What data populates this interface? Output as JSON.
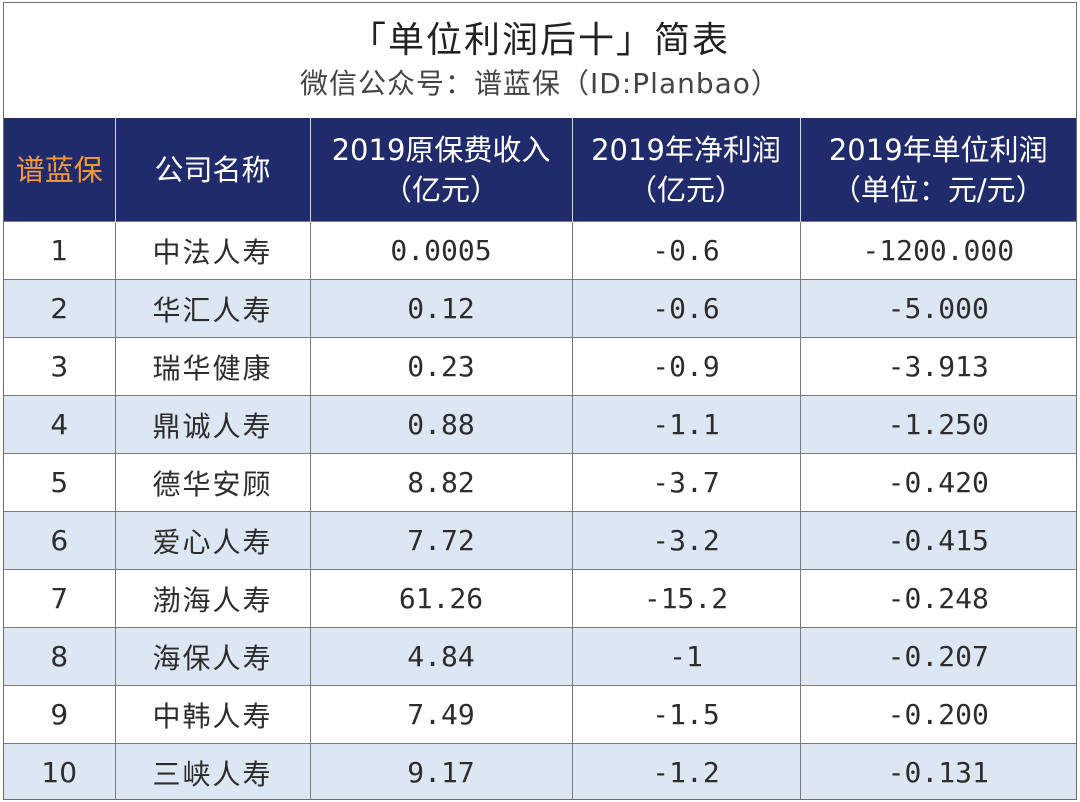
{
  "title": "「单位利润后十」简表",
  "subtitle": "微信公众号：谱蓝保（ID:Planbao）",
  "headers": [
    {
      "line1": "谱蓝保",
      "line2": ""
    },
    {
      "line1": "公司名称",
      "line2": ""
    },
    {
      "line1": "2019原保费收入",
      "line2": "（亿元）"
    },
    {
      "line1": "2019年净利润",
      "line2": "（亿元）"
    },
    {
      "line1": "2019年单位利润",
      "line2": "（单位：元/元）"
    }
  ],
  "rows": [
    {
      "rank": "1",
      "company": "中法人寿",
      "premium": "0.0005",
      "net_profit": "-0.6",
      "unit_profit": "-1200.000"
    },
    {
      "rank": "2",
      "company": "华汇人寿",
      "premium": "0.12",
      "net_profit": "-0.6",
      "unit_profit": "-5.000"
    },
    {
      "rank": "3",
      "company": "瑞华健康",
      "premium": "0.23",
      "net_profit": "-0.9",
      "unit_profit": "-3.913"
    },
    {
      "rank": "4",
      "company": "鼎诚人寿",
      "premium": "0.88",
      "net_profit": "-1.1",
      "unit_profit": "-1.250"
    },
    {
      "rank": "5",
      "company": "德华安顾",
      "premium": "8.82",
      "net_profit": "-3.7",
      "unit_profit": "-0.420"
    },
    {
      "rank": "6",
      "company": "爱心人寿",
      "premium": "7.72",
      "net_profit": "-3.2",
      "unit_profit": "-0.415"
    },
    {
      "rank": "7",
      "company": "渤海人寿",
      "premium": "61.26",
      "net_profit": "-15.2",
      "unit_profit": "-0.248"
    },
    {
      "rank": "8",
      "company": "海保人寿",
      "premium": "4.84",
      "net_profit": "-1",
      "unit_profit": "-0.207"
    },
    {
      "rank": "9",
      "company": "中韩人寿",
      "premium": "7.49",
      "net_profit": "-1.5",
      "unit_profit": "-0.200"
    },
    {
      "rank": "10",
      "company": "三峡人寿",
      "premium": "9.17",
      "net_profit": "-1.2",
      "unit_profit": "-0.131"
    }
  ],
  "colors": {
    "header_bg": "#1f2b6b",
    "brand_orange": "#f29a3a",
    "stripe": "#dde7f3"
  }
}
